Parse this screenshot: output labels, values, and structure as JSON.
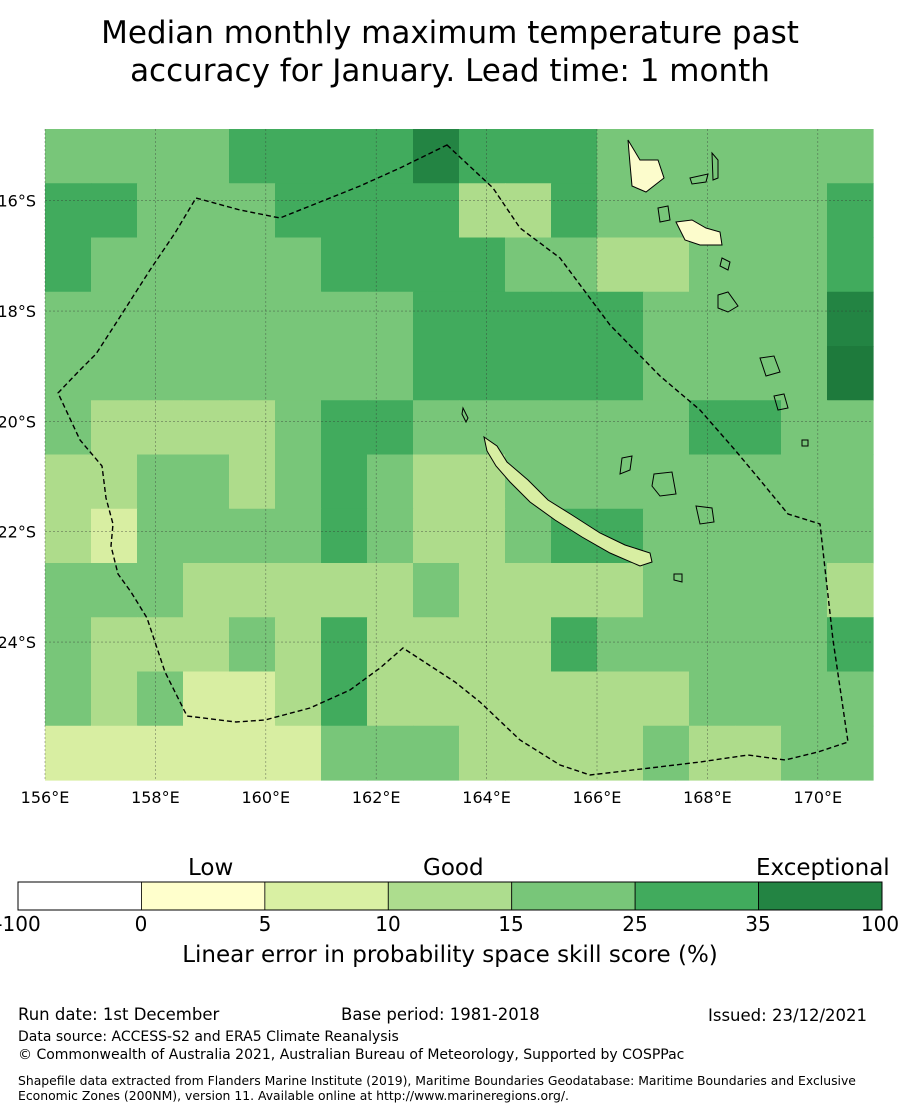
{
  "title_line1": "Median monthly maximum temperature past",
  "title_line2": "accuracy for January. Lead time: 1 month",
  "map": {
    "lon_range": [
      156,
      171
    ],
    "lat_range": [
      -26.5,
      -14.7
    ],
    "x_ticks": [
      "156°E",
      "158°E",
      "160°E",
      "162°E",
      "164°E",
      "166°E",
      "168°E",
      "170°E"
    ],
    "y_ticks": [
      "16°S",
      "18°S",
      "20°S",
      "22°S",
      "24°S"
    ],
    "grid_cols": 18,
    "grid_rows": 12,
    "skill_grid": [
      "333344445444333333",
      "443334444224333334",
      "433333444433223334",
      "333333334444433335",
      "333333334444433336",
      "322223443333334433",
      "223323432233333333",
      "213333432234433333",
      "333222223222233332",
      "322232422224333334",
      "323112422222223333",
      "111111333222232233"
    ]
  },
  "colors": {
    "c0": "#fcfccc",
    "c1": "#d8eea2",
    "c2": "#aedc8b",
    "c3": "#78c679",
    "c4": "#41ab5d",
    "c5": "#238443",
    "c6": "#1e7a3c",
    "border": "#000000"
  },
  "colorbar": {
    "category_low": "Low",
    "category_good": "Good",
    "category_exceptional": "Exceptional",
    "ticks": [
      "-100",
      "0",
      "5",
      "10",
      "15",
      "25",
      "35",
      "100"
    ],
    "colors": [
      "#ffffff",
      "#ffffcc",
      "#d9f0a3",
      "#addd8e",
      "#78c679",
      "#41ab5d",
      "#238443"
    ],
    "label": "Linear error in probability space skill score (%)"
  },
  "footer": {
    "run_date": "Run date: 1st December",
    "base_period": "Base period: 1981-2018",
    "issued": "Issued: 23/12/2021",
    "data_source": "Data source: ACCESS-S2 and ERA5 Climate Reanalysis",
    "copyright": "© Commonwealth of Australia 2021, Australian Bureau of Meteorology, Supported by COSPPac",
    "shapefile": "Shapefile data extracted from Flanders Marine Institute (2019), Maritime Boundaries Geodatabase: Maritime Boundaries and Exclusive Economic Zones (200NM), version 11. Available online at http://www.marineregions.org/."
  }
}
